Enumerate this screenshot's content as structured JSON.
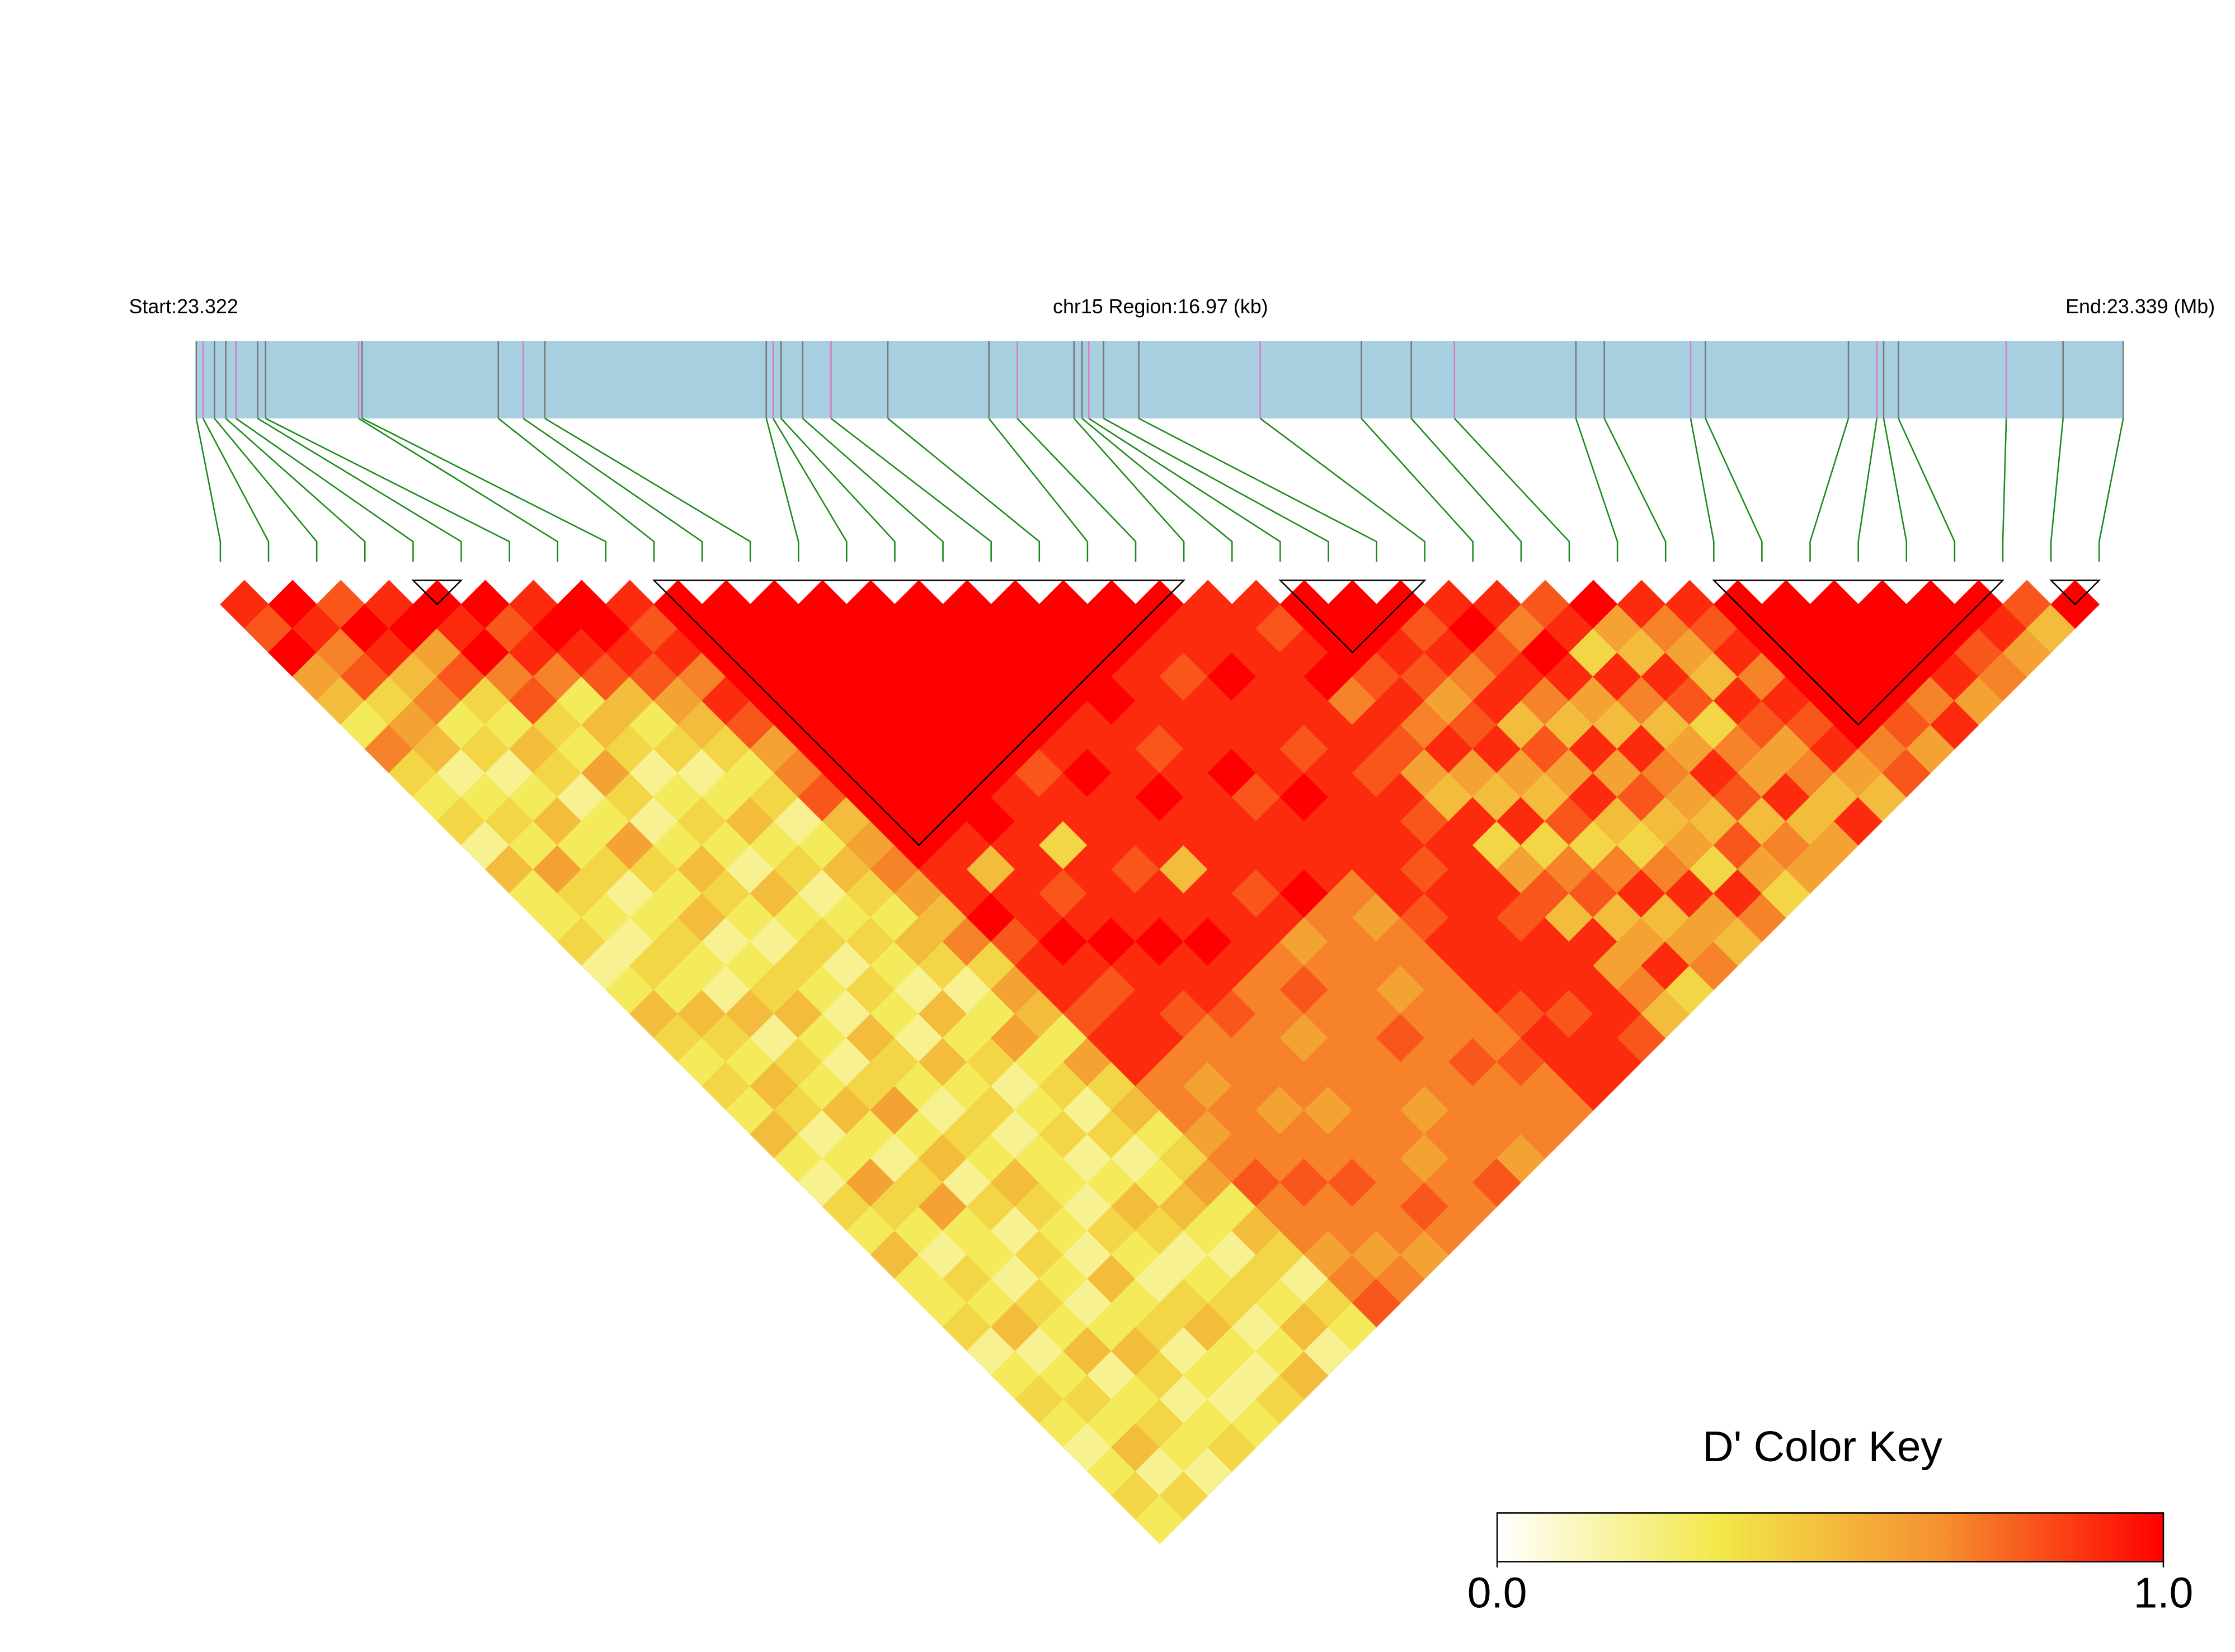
{
  "chart_data": {
    "type": "ld_heatmap",
    "title": "chr15 Region:16.97 (kb)",
    "start_label": "Start:23.322",
    "end_label": "End:23.339 (Mb)",
    "xlim": [
      0,
      16.97
    ],
    "positions_kb": [
      0.0,
      0.06,
      0.16,
      0.26,
      0.35,
      0.54,
      0.61,
      1.43,
      1.46,
      2.66,
      2.88,
      3.07,
      5.02,
      5.08,
      5.15,
      5.34,
      5.59,
      6.09,
      6.98,
      7.23,
      7.73,
      7.8,
      7.86,
      7.99,
      8.3,
      9.37,
      10.26,
      10.7,
      11.08,
      12.15,
      12.4,
      13.16,
      13.29,
      14.55,
      14.8,
      14.86,
      14.99,
      15.94,
      16.44,
      16.97
    ],
    "dprime": [
      [
        0.9,
        0.8,
        1,
        0.6,
        0.5,
        0.3,
        0.7,
        0.4,
        0.3,
        0.4,
        0.2,
        0.5,
        0.3,
        0.3,
        0.4,
        0.2,
        0.3,
        0.5,
        0.4,
        0.3,
        0.4,
        0.3,
        0.5,
        0.3,
        0.2,
        0.4,
        0.3,
        0.5,
        0.3,
        0.3,
        0.4,
        0.2,
        0.3,
        0.4,
        0.3,
        0.2,
        0.3,
        0.4,
        0.3
      ],
      [
        1,
        0.9,
        0.7,
        0.8,
        0.4,
        0.6,
        0.5,
        0.2,
        0.3,
        0.4,
        0.3,
        0.6,
        0.4,
        0.3,
        0.2,
        0.4,
        0.3,
        0.5,
        0.4,
        0.3,
        0.5,
        0.4,
        0.2,
        0.3,
        0.6,
        0.4,
        0.3,
        0.2,
        0.4,
        0.3,
        0.5,
        0.2,
        0.3,
        0.4,
        0.3,
        0.5,
        0.2,
        0.4
      ],
      [
        0.8,
        1,
        0.9,
        0.5,
        0.7,
        0.3,
        0.4,
        0.2,
        0.3,
        0.5,
        0.3,
        0.4,
        0.2,
        0.3,
        0.4,
        0.3,
        0.2,
        0.5,
        0.2,
        0.4,
        0.3,
        0.5,
        0.3,
        0.2,
        0.4,
        0.6,
        0.3,
        0.3,
        0.2,
        0.4,
        0.3,
        0.5,
        0.2,
        0.3,
        0.4,
        0.3,
        0.2
      ],
      [
        0.9,
        1,
        0.6,
        0.8,
        0.4,
        0.3,
        0.5,
        0.4,
        0.2,
        0.3,
        0.6,
        0.4,
        0.3,
        0.5,
        0.2,
        0.3,
        0.4,
        0.5,
        0.3,
        0.2,
        0.4,
        0.6,
        0.3,
        0.5,
        0.2,
        0.4,
        0.2,
        0.4,
        0.3,
        0.2,
        0.3,
        0.5,
        0.4,
        0.2,
        0.3,
        0.4
      ],
      [
        1,
        0.9,
        1,
        0.7,
        0.8,
        0.4,
        0.3,
        0.6,
        0.4,
        0.2,
        0.3,
        0.5,
        0.4,
        0.3,
        0.2,
        0.4,
        0.3,
        0.2,
        0.5,
        0.4,
        0.3,
        0.2,
        0.4,
        0.3,
        0.5,
        0.4,
        0.3,
        0.2,
        0.5,
        0.3,
        0.4,
        0.2,
        0.3,
        0.2,
        0.3
      ],
      [
        1,
        0.8,
        0.9,
        0.7,
        0.3,
        0.5,
        0.4,
        0.2,
        0.3,
        0.4,
        0.3,
        0.2,
        0.5,
        0.3,
        0.4,
        0.2,
        0.4,
        0.3,
        0.2,
        0.5,
        0.3,
        0.4,
        0.2,
        0.3,
        0.3,
        0.2,
        0.4,
        0.3,
        0.2,
        0.4,
        0.5,
        0.3,
        0.2,
        0.4
      ],
      [
        0.9,
        1,
        0.9,
        0.8,
        0.5,
        0.3,
        0.4,
        0.2,
        0.3,
        0.5,
        0.3,
        0.4,
        0.2,
        0.3,
        0.4,
        0.3,
        0.2,
        0.5,
        0.3,
        0.4,
        0.2,
        0.3,
        0.4,
        0.2,
        0.3,
        0.5,
        0.4,
        0.2,
        0.3,
        0.4,
        0.2,
        0.3,
        0.5
      ],
      [
        1,
        1,
        0.9,
        0.8,
        0.6,
        0.5,
        0.4,
        0.3,
        0.4,
        0.2,
        0.3,
        0.5,
        0.4,
        0.3,
        0.5,
        0.4,
        0.2,
        0.3,
        0.6,
        0.3,
        0.4,
        0.2,
        0.4,
        0.2,
        0.3,
        0.5,
        0.3,
        0.2,
        0.4,
        0.3,
        0.5,
        0.2
      ],
      [
        0.9,
        0.8,
        0.9,
        0.7,
        0.9,
        0.8,
        0.6,
        0.7,
        0.8,
        0.5,
        0.6,
        0.7,
        0.6,
        0.5,
        0.7,
        0.4,
        0.6,
        0.5,
        0.3,
        0.6,
        0.4,
        0.5,
        0.3,
        0.4,
        0.6,
        0.3,
        0.5,
        0.4,
        0.2,
        0.4,
        0.3
      ],
      [
        1,
        1,
        1,
        1,
        1,
        1,
        1,
        1,
        1,
        1,
        1,
        0.9,
        0.9,
        1,
        0.8,
        0.9,
        0.9,
        0.8,
        0.9,
        0.9,
        0.7,
        0.7,
        0.6,
        0.7,
        0.8,
        0.7,
        0.7,
        0.6,
        0.7,
        0.8
      ],
      [
        1,
        1,
        1,
        1,
        1,
        1,
        1,
        1,
        1,
        1,
        0.9,
        0.5,
        0.9,
        0.9,
        1,
        0.9,
        0.8,
        0.9,
        0.9,
        0.7,
        0.6,
        0.7,
        0.7,
        0.7,
        0.8,
        0.7,
        0.7,
        0.6,
        0.7
      ],
      [
        1,
        1,
        1,
        1,
        1,
        1,
        1,
        1,
        1,
        1,
        0.9,
        0.9,
        0.8,
        0.9,
        1,
        0.9,
        0.9,
        0.8,
        0.7,
        0.7,
        0.7,
        0.6,
        0.7,
        0.7,
        0.8,
        0.7,
        0.7,
        0.6
      ],
      [
        1,
        1,
        1,
        1,
        1,
        1,
        1,
        1,
        0.9,
        0.9,
        0.4,
        0.9,
        0.9,
        0.9,
        1,
        0.9,
        0.9,
        0.8,
        0.7,
        0.7,
        0.7,
        0.6,
        0.7,
        0.7,
        0.7,
        0.8,
        0.7
      ],
      [
        1,
        1,
        1,
        1,
        1,
        1,
        1,
        0.8,
        0.9,
        0.9,
        0.9,
        0.8,
        0.9,
        0.9,
        1,
        0.9,
        0.7,
        0.7,
        0.6,
        0.7,
        0.7,
        0.7,
        0.7,
        0.6,
        0.7,
        0.7
      ],
      [
        1,
        1,
        1,
        1,
        1,
        1,
        0.9,
        1,
        0.9,
        0.9,
        0.9,
        0.5,
        0.9,
        0.9,
        0.9,
        0.7,
        0.8,
        0.7,
        0.7,
        0.7,
        0.7,
        0.6,
        0.7,
        0.7,
        0.8
      ],
      [
        1,
        1,
        1,
        1,
        1,
        0.9,
        0.9,
        0.9,
        1,
        0.9,
        0.9,
        0.9,
        0.8,
        0.9,
        0.6,
        0.7,
        0.7,
        0.7,
        0.8,
        0.7,
        0.7,
        0.7,
        0.7,
        0.6
      ],
      [
        1,
        1,
        1,
        1,
        1,
        0.9,
        0.8,
        0.9,
        0.9,
        0.9,
        0.9,
        0.9,
        1,
        0.7,
        0.7,
        0.7,
        0.6,
        0.7,
        0.7,
        0.8,
        0.7,
        0.7,
        0.7
      ],
      [
        1,
        1,
        1,
        0.9,
        0.9,
        0.9,
        0.9,
        1,
        0.8,
        0.9,
        0.9,
        0.9,
        0.7,
        0.6,
        0.7,
        0.7,
        0.7,
        0.7,
        0.7,
        0.8,
        0.7,
        0.7
      ],
      [
        1,
        1,
        0.9,
        0.8,
        0.9,
        0.9,
        0.9,
        0.9,
        1,
        0.9,
        0.9,
        0.9,
        0.9,
        0.8,
        0.9,
        0.9,
        0.9,
        0.8,
        0.9,
        0.9,
        0.9
      ],
      [
        1,
        0.9,
        0.9,
        1,
        0.9,
        0.9,
        0.8,
        0.9,
        0.9,
        0.9,
        0.9,
        0.8,
        0.9,
        0.9,
        0.9,
        0.9,
        0.9,
        0.8,
        0.9,
        0.9
      ],
      [
        0.9,
        0.9,
        0.9,
        0.9,
        0.9,
        0.9,
        0.9,
        0.8,
        0.9,
        0.8,
        0.9,
        0.9,
        0.9,
        0.8,
        0.9,
        0.9,
        0.9,
        0.9,
        0.8
      ],
      [
        0.9,
        0.8,
        0.9,
        1,
        0.7,
        0.9,
        0.8,
        0.6,
        0.5,
        0.9,
        0.4,
        0.6,
        0.8,
        0.5,
        0.9,
        0.6,
        0.7,
        0.5
      ],
      [
        1,
        1,
        1,
        0.8,
        0.9,
        0.7,
        0.9,
        0.6,
        0.5,
        0.9,
        0.4,
        0.7,
        0.8,
        0.5,
        0.6,
        0.9,
        0.4
      ],
      [
        1,
        1,
        0.9,
        0.8,
        0.6,
        0.8,
        0.9,
        0.6,
        0.5,
        0.8,
        0.4,
        0.7,
        0.9,
        0.5,
        0.6,
        0.7
      ],
      [
        1,
        0.8,
        0.9,
        0.7,
        0.9,
        0.5,
        0.8,
        0.6,
        0.9,
        0.5,
        0.4,
        0.7,
        0.9,
        0.6,
        0.5
      ],
      [
        0.9,
        1,
        0.8,
        0.9,
        0.7,
        0.5,
        0.9,
        0.6,
        0.8,
        0.5,
        0.6,
        0.4,
        0.9,
        0.7
      ],
      [
        0.9,
        0.7,
        1,
        0.9,
        0.6,
        0.5,
        0.9,
        0.7,
        0.6,
        0.5,
        0.8,
        0.6,
        0.4
      ],
      [
        0.8,
        0.9,
        0.4,
        0.9,
        0.7,
        0.5,
        0.6,
        0.9,
        0.8,
        0.5,
        0.7,
        0.6
      ],
      [
        1,
        0.6,
        0.5,
        0.9,
        0.8,
        0.4,
        0.7,
        0.6,
        0.9,
        0.5,
        0.6
      ],
      [
        0.9,
        0.7,
        0.6,
        0.5,
        0.9,
        0.8,
        0.6,
        0.7,
        0.5,
        0.9
      ],
      [
        0.9,
        0.8,
        0.9,
        0.7,
        0.9,
        0.8,
        0.9,
        0.6,
        0.5
      ],
      [
        1,
        1,
        1,
        1,
        1,
        1,
        0.7,
        0.8
      ],
      [
        1,
        1,
        1,
        1,
        1,
        0.8,
        0.6
      ],
      [
        1,
        1,
        1,
        1,
        0.7,
        0.9
      ],
      [
        1,
        1,
        1,
        0.9,
        0.6
      ],
      [
        1,
        1,
        0.8,
        0.7
      ],
      [
        1,
        0.9,
        0.6
      ],
      [
        0.8,
        0.5
      ],
      [
        1
      ]
    ],
    "blocks": [
      [
        4,
        5
      ],
      [
        9,
        20
      ],
      [
        22,
        25
      ],
      [
        31,
        37
      ],
      [
        38,
        39
      ]
    ],
    "colorscale": [
      "#ffffff",
      "#f2e84a",
      "#f5902f",
      "#ff0000"
    ],
    "clim": [
      0,
      1
    ],
    "legend_title": "D' Color Key",
    "legend_ticks": [
      {
        "value": 0,
        "label": "0.0"
      },
      {
        "value": 1,
        "label": "1.0"
      }
    ]
  }
}
